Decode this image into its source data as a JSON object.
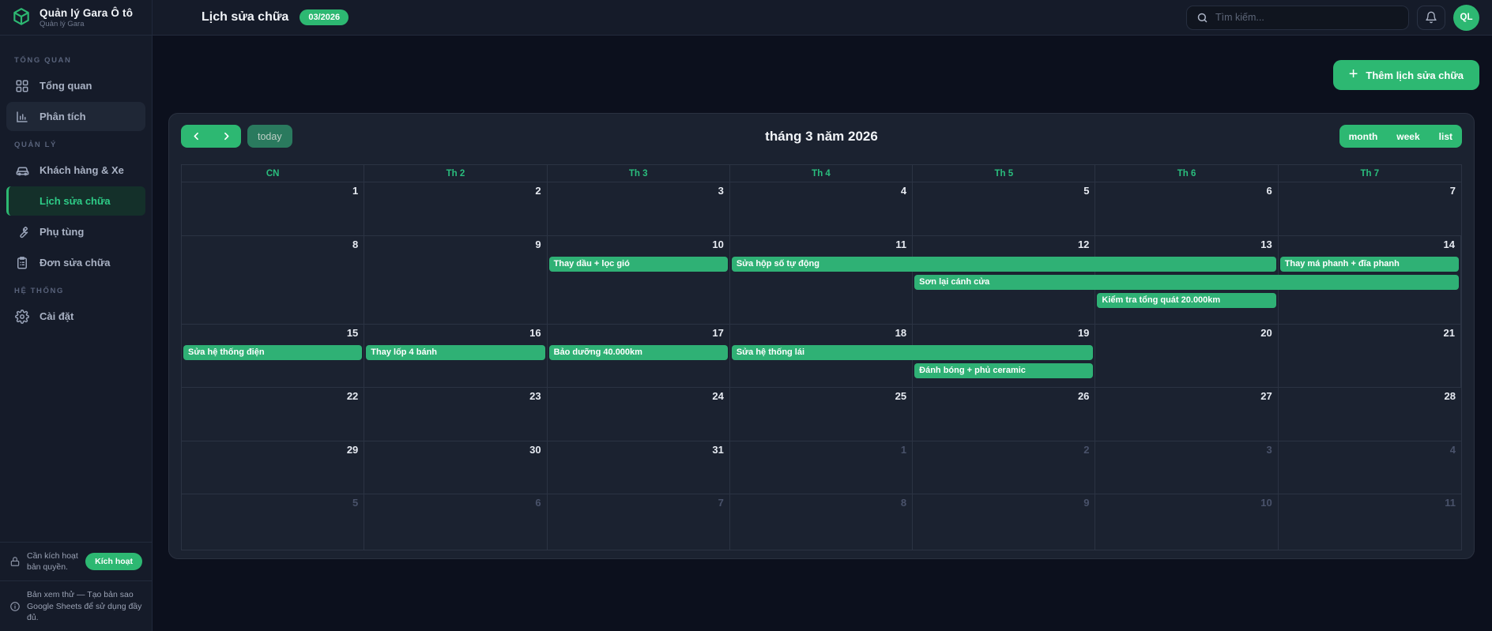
{
  "brand": {
    "title": "Quản lý Gara Ô tô",
    "subtitle": "Quản lý Gara"
  },
  "header": {
    "title": "Lịch sửa chữa",
    "badge": "03/2026",
    "search_placeholder": "Tìm kiếm...",
    "avatar": "QL"
  },
  "sidebar": {
    "sections": [
      {
        "label": "TỔNG QUAN",
        "items": [
          {
            "label": "Tổng quan"
          },
          {
            "label": "Phân tích"
          }
        ]
      },
      {
        "label": "QUẢN LÝ",
        "items": [
          {
            "label": "Khách hàng & Xe"
          },
          {
            "label": "Lịch sửa chữa"
          },
          {
            "label": "Phụ tùng"
          },
          {
            "label": "Đơn sửa chữa"
          }
        ]
      },
      {
        "label": "HỆ THỐNG",
        "items": [
          {
            "label": "Cài đặt"
          }
        ]
      }
    ],
    "license_notice": {
      "text": "Cần kích hoạt bản quyền.",
      "button": "Kích hoạt"
    },
    "trial_notice": "Bản xem thử — Tạo bản sao Google Sheets để sử dụng đầy đủ."
  },
  "toolbar": {
    "add_button": "Thêm lịch sửa chữa",
    "today": "today",
    "title": "tháng 3 năm 2026",
    "views": [
      "month",
      "week",
      "list"
    ]
  },
  "calendar": {
    "day_headers": [
      "CN",
      "Th 2",
      "Th 3",
      "Th 4",
      "Th 5",
      "Th 6",
      "Th 7"
    ],
    "weeks": [
      [
        {
          "n": 1
        },
        {
          "n": 2
        },
        {
          "n": 3
        },
        {
          "n": 4
        },
        {
          "n": 5
        },
        {
          "n": 6
        },
        {
          "n": 7
        }
      ],
      [
        {
          "n": 8
        },
        {
          "n": 9
        },
        {
          "n": 10
        },
        {
          "n": 11
        },
        {
          "n": 12
        },
        {
          "n": 13
        },
        {
          "n": 14
        }
      ],
      [
        {
          "n": 15
        },
        {
          "n": 16
        },
        {
          "n": 17
        },
        {
          "n": 18
        },
        {
          "n": 19
        },
        {
          "n": 20
        },
        {
          "n": 21
        }
      ],
      [
        {
          "n": 22
        },
        {
          "n": 23
        },
        {
          "n": 24
        },
        {
          "n": 25
        },
        {
          "n": 26
        },
        {
          "n": 27
        },
        {
          "n": 28
        }
      ],
      [
        {
          "n": 29
        },
        {
          "n": 30
        },
        {
          "n": 31
        },
        {
          "n": 1,
          "muted": true
        },
        {
          "n": 2,
          "muted": true
        },
        {
          "n": 3,
          "muted": true
        },
        {
          "n": 4,
          "muted": true
        }
      ],
      [
        {
          "n": 5,
          "muted": true
        },
        {
          "n": 6,
          "muted": true
        },
        {
          "n": 7,
          "muted": true
        },
        {
          "n": 8,
          "muted": true
        },
        {
          "n": 9,
          "muted": true
        },
        {
          "n": 10,
          "muted": true
        },
        {
          "n": 11,
          "muted": true
        }
      ]
    ],
    "events": [
      {
        "week": 1,
        "level": 0,
        "col": 2,
        "span": 1,
        "title": "Thay dầu + lọc gió"
      },
      {
        "week": 1,
        "level": 0,
        "col": 3,
        "span": 3,
        "title": "Sửa hộp số tự động"
      },
      {
        "week": 1,
        "level": 0,
        "col": 6,
        "span": 1,
        "title": "Thay má phanh + đĩa phanh"
      },
      {
        "week": 1,
        "level": 1,
        "col": 4,
        "span": 3,
        "title": "Sơn lại cánh cửa"
      },
      {
        "week": 1,
        "level": 2,
        "col": 5,
        "span": 1,
        "title": "Kiểm tra tổng quát 20.000km"
      },
      {
        "week": 2,
        "level": 0,
        "col": 0,
        "span": 1,
        "title": "Sửa hệ thống điện"
      },
      {
        "week": 2,
        "level": 0,
        "col": 1,
        "span": 1,
        "title": "Thay lốp 4 bánh"
      },
      {
        "week": 2,
        "level": 0,
        "col": 2,
        "span": 1,
        "title": "Bảo dưỡng 40.000km"
      },
      {
        "week": 2,
        "level": 0,
        "col": 3,
        "span": 2,
        "title": "Sửa hệ thống lái"
      },
      {
        "week": 2,
        "level": 1,
        "col": 4,
        "span": 1,
        "title": "Đánh bóng + phủ ceramic"
      }
    ]
  },
  "colors": {
    "accent_green": "#2db872",
    "event_green": "#2fb175",
    "day_header_green": "#2abd7d",
    "sidebar_bg": "#151b29",
    "card_bg": "#1b2230",
    "page_bg": "#0c101d"
  }
}
